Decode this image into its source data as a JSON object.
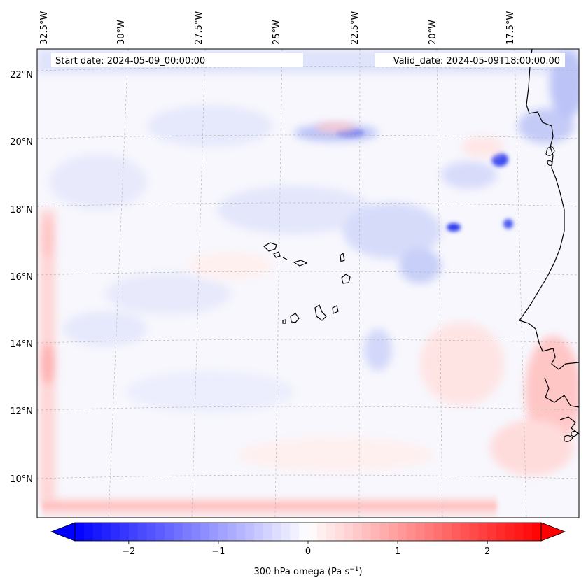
{
  "map": {
    "start_label": "Start date: 2024-05-09_00:00:00",
    "valid_label": "Valid_date: 2024-05-09T18:00:00.00",
    "lon_labels": [
      "32.5°W",
      "30°W",
      "27.5°W",
      "25°W",
      "22.5°W",
      "20°W",
      "17.5°W"
    ],
    "lat_labels": [
      "22°N",
      "20°N",
      "18°N",
      "16°N",
      "14°N",
      "12°N",
      "10°N"
    ]
  },
  "colorbar": {
    "title": "300 hPa omega (Pa s",
    "title_sup": "−1",
    "title_end": ")",
    "ticks": [
      "−2",
      "−1",
      "0",
      "1",
      "2"
    ],
    "tick_values": [
      -2,
      -1,
      0,
      1,
      2
    ],
    "range": [
      -2.6,
      2.6
    ],
    "low_color": "#0000ff",
    "mid_color": "#ffffff",
    "high_color": "#ff0000"
  },
  "colors": {
    "coastline": "#000000",
    "grid": "#b8b8b8",
    "field_background": "#f7f7fd"
  }
}
